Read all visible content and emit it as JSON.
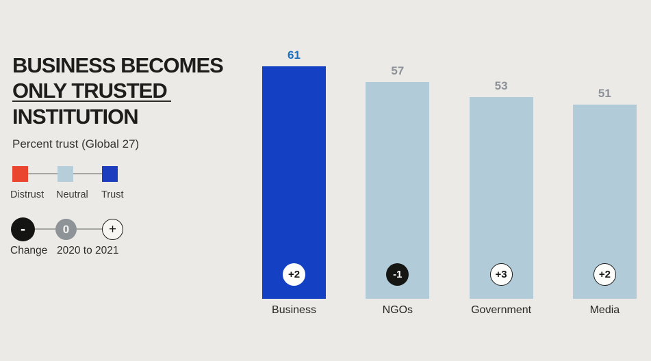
{
  "background_color": "#eceae7",
  "header": {
    "title_lines": [
      "BUSINESS BECOMES",
      "ONLY TRUSTED",
      "INSTITUTION"
    ],
    "subtitle": "Percent trust (Global 27)"
  },
  "legend": {
    "items": [
      {
        "label": "Distrust",
        "color": "#e9452f"
      },
      {
        "label": "Neutral",
        "color": "#b6cdda"
      },
      {
        "label": "Trust",
        "color": "#1b3dbe"
      }
    ]
  },
  "change_legend": {
    "minus_glyph": "-",
    "zero_glyph": "0",
    "plus_glyph": "+",
    "label_left": "Change",
    "label_right": "2020 to 2021",
    "minus_fill": "#141413",
    "zero_fill": "#8e9397",
    "plus_fill": "#f7f6f3"
  },
  "chart_data": {
    "type": "bar",
    "title": "BUSINESS BECOMES ONLY TRUSTED INSTITUTION",
    "subtitle": "Percent trust (Global 27)",
    "categories": [
      "Business",
      "NGOs",
      "Government",
      "Media"
    ],
    "values": [
      61,
      57,
      53,
      51
    ],
    "changes_2020_to_2021": [
      "+2",
      "-1",
      "+3",
      "+2"
    ],
    "series_class": [
      "Trust",
      "Neutral",
      "Neutral",
      "Neutral"
    ],
    "bar_colors": [
      "#1440c4",
      "#b1cbd9",
      "#b1cbd9",
      "#b1cbd9"
    ],
    "value_label_colors": [
      "#1a70be",
      "#8b9196",
      "#8b9196",
      "#8b9196"
    ],
    "change_badge_styles": [
      "plain",
      "dark",
      "outline",
      "outline"
    ],
    "ylim": [
      0,
      65
    ],
    "grid": false,
    "legend_position": "left"
  }
}
